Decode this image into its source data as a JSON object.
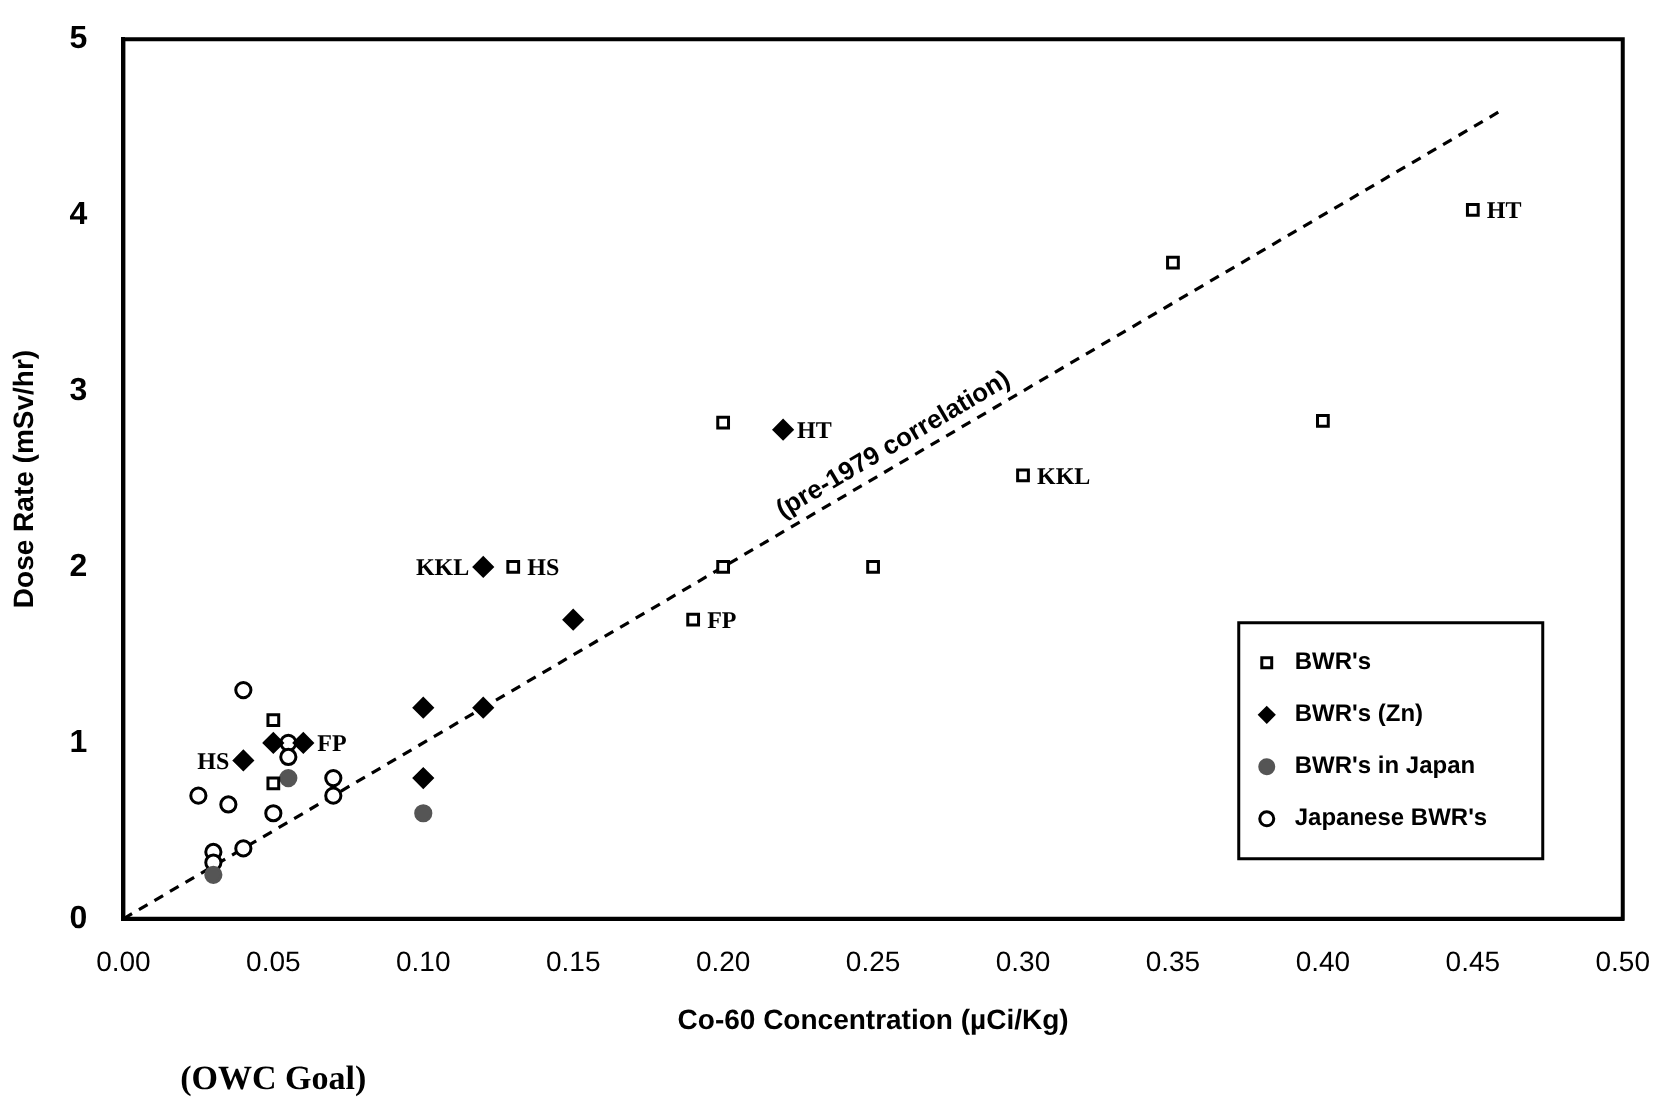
{
  "chart_data": {
    "type": "scatter",
    "xlabel": "Co-60 Concentration (µCi/Kg)",
    "ylabel": "Dose Rate (mSv/hr)",
    "xlim": [
      0,
      0.5
    ],
    "ylim": [
      0,
      5
    ],
    "xticks": [
      {
        "value": 0,
        "label": "0.00"
      },
      {
        "value": 0.05,
        "label": "0.05"
      },
      {
        "value": 0.1,
        "label": "0.10"
      },
      {
        "value": 0.15,
        "label": "0.15"
      },
      {
        "value": 0.2,
        "label": "0.20"
      },
      {
        "value": 0.25,
        "label": "0.25"
      },
      {
        "value": 0.3,
        "label": "0.30"
      },
      {
        "value": 0.35,
        "label": "0.35"
      },
      {
        "value": 0.4,
        "label": "0.40"
      },
      {
        "value": 0.45,
        "label": "0.45"
      },
      {
        "value": 0.5,
        "label": "0.50"
      }
    ],
    "yticks": [
      0,
      1,
      2,
      3,
      4,
      5
    ],
    "grid": false,
    "legend": "bottom right",
    "series": [
      {
        "name": "BWR's",
        "color": "#000000",
        "marker": "square",
        "x": [
          0.45,
          0.35,
          0.4,
          0.3,
          0.2,
          0.2,
          0.25,
          0.13,
          0.19,
          0.05,
          0.05
        ],
        "values": [
          4.03,
          3.73,
          2.83,
          2.52,
          2.82,
          2.0,
          2.0,
          2.0,
          1.7,
          1.13,
          0.77
        ]
      },
      {
        "name": "BWR's (Zn)",
        "color": "#000000",
        "marker": "diamond",
        "x": [
          0.22,
          0.12,
          0.15,
          0.1,
          0.12,
          0.1,
          0.04,
          0.05,
          0.06
        ],
        "values": [
          2.78,
          2.0,
          1.7,
          1.2,
          1.2,
          0.8,
          0.9,
          1.0,
          1.0
        ]
      },
      {
        "name": "BWR's in Japan",
        "color": "#555555",
        "marker": "circle",
        "x": [
          0.1,
          0.03,
          0.055
        ],
        "values": [
          0.6,
          0.25,
          0.8
        ]
      },
      {
        "name": "Japanese BWR's",
        "color": "#000000",
        "marker": "circle",
        "x": [
          0.04,
          0.055,
          0.055,
          0.025,
          0.035,
          0.05,
          0.07,
          0.07,
          0.03,
          0.03,
          0.04
        ],
        "values": [
          1.3,
          1.0,
          0.92,
          0.7,
          0.65,
          0.6,
          0.8,
          0.7,
          0.38,
          0.32,
          0.4
        ]
      },
      {
        "type": "line",
        "color": "#000000",
        "line_style": "dashed",
        "marker": "none",
        "x": [
          0,
          0.46
        ],
        "values": [
          0,
          4.6
        ]
      }
    ],
    "annotations": [
      {
        "text": "HS",
        "x": 0.13,
        "y": 2.0
      },
      {
        "text": "KKL",
        "x": 0.12,
        "y": 2.0
      },
      {
        "text": "FP",
        "x": 0.19,
        "y": 1.7
      },
      {
        "text": "HT",
        "x": 0.22,
        "y": 2.78
      },
      {
        "text": "KKL",
        "x": 0.3,
        "y": 2.52
      },
      {
        "text": "HT",
        "x": 0.45,
        "y": 4.03
      },
      {
        "text": "HS",
        "x": 0.04,
        "y": 0.9
      },
      {
        "text": "FP",
        "x": 0.06,
        "y": 1.0
      },
      {
        "text": "(pre-1979 correlation)",
        "x": 0.26,
        "y": 2.6
      },
      "(OWC Goal)"
    ]
  }
}
